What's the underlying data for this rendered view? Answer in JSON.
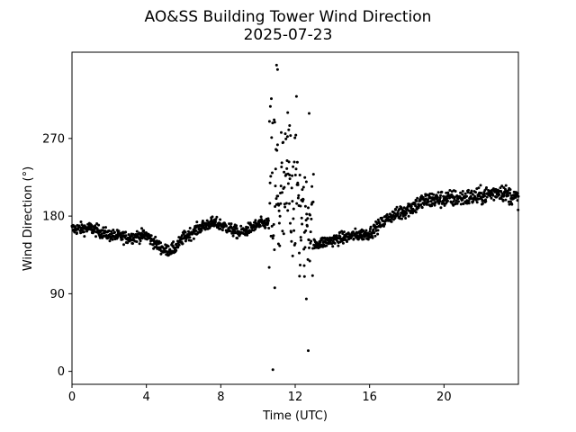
{
  "chart_data": {
    "type": "scatter",
    "title": "AO&SS Building Tower Wind Direction",
    "subtitle": "2025-07-23",
    "xlabel": "Time (UTC)",
    "ylabel": "Wind Direction (°)",
    "xlim": [
      0,
      24
    ],
    "ylim": [
      -15,
      370
    ],
    "xticks": [
      0,
      4,
      8,
      12,
      16,
      20
    ],
    "yticks": [
      0,
      90,
      180,
      270
    ],
    "grid": false,
    "legend": "none",
    "marker_color": "#000000",
    "approx_trend": {
      "description_points_x_hours": [
        0,
        1,
        2,
        3,
        4,
        4.5,
        5,
        5.5,
        6,
        7,
        7.5,
        8,
        9,
        10,
        10.5,
        13,
        14,
        15,
        16,
        17,
        18,
        19,
        20,
        21,
        22,
        23,
        24
      ],
      "description_points_y_deg": [
        165,
        166,
        158,
        155,
        158,
        148,
        140,
        142,
        155,
        168,
        172,
        170,
        160,
        170,
        172,
        147,
        152,
        157,
        160,
        178,
        188,
        198,
        200,
        201,
        203,
        209,
        200
      ]
    },
    "outliers": [
      {
        "x": 10.8,
        "y": 2
      },
      {
        "x": 10.9,
        "y": 97
      },
      {
        "x": 11.0,
        "y": 355
      },
      {
        "x": 11.05,
        "y": 350
      },
      {
        "x": 11.6,
        "y": 300
      },
      {
        "x": 11.7,
        "y": 285
      },
      {
        "x": 12.6,
        "y": 84
      },
      {
        "x": 12.7,
        "y": 24
      },
      {
        "x": 12.75,
        "y": 299
      },
      {
        "x": 12.5,
        "y": 110
      }
    ]
  }
}
